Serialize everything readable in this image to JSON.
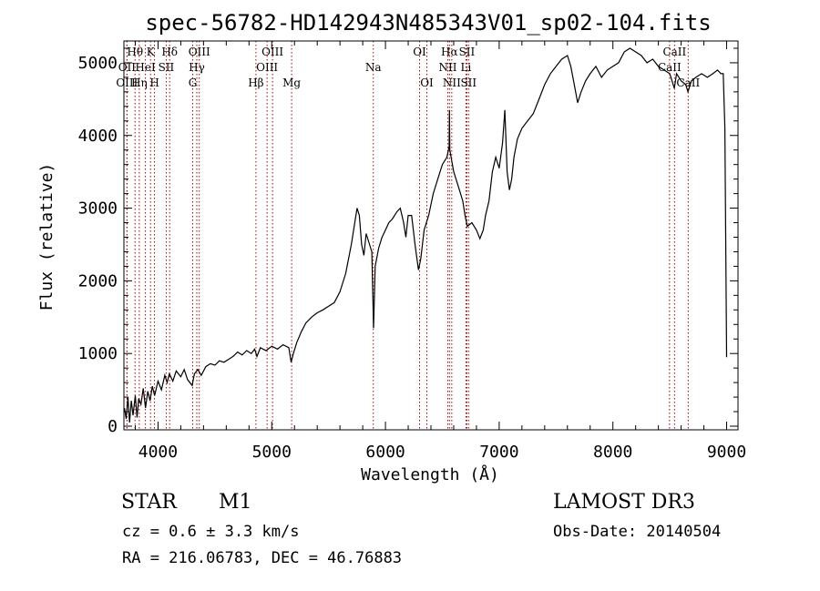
{
  "chart_data": {
    "type": "line",
    "title": "spec-56782-HD142943N485343V01_sp02-104.fits",
    "xlabel": "Wavelength (Å)",
    "ylabel": "Flux (relative)",
    "xlim": [
      3700,
      9100
    ],
    "ylim": [
      -50,
      5300
    ],
    "xticks": [
      4000,
      5000,
      6000,
      7000,
      8000,
      9000
    ],
    "yticks": [
      0,
      1000,
      2000,
      3000,
      4000,
      5000
    ],
    "series": [
      {
        "name": "flux",
        "points": [
          [
            3705,
            250
          ],
          [
            3720,
            100
          ],
          [
            3735,
            400
          ],
          [
            3750,
            50
          ],
          [
            3765,
            350
          ],
          [
            3780,
            150
          ],
          [
            3800,
            420
          ],
          [
            3815,
            120
          ],
          [
            3830,
            380
          ],
          [
            3850,
            300
          ],
          [
            3870,
            520
          ],
          [
            3890,
            250
          ],
          [
            3910,
            480
          ],
          [
            3930,
            350
          ],
          [
            3950,
            550
          ],
          [
            3970,
            420
          ],
          [
            4000,
            620
          ],
          [
            4030,
            500
          ],
          [
            4060,
            700
          ],
          [
            4080,
            600
          ],
          [
            4100,
            720
          ],
          [
            4130,
            620
          ],
          [
            4160,
            760
          ],
          [
            4200,
            680
          ],
          [
            4230,
            780
          ],
          [
            4260,
            640
          ],
          [
            4300,
            560
          ],
          [
            4320,
            720
          ],
          [
            4350,
            780
          ],
          [
            4380,
            700
          ],
          [
            4420,
            820
          ],
          [
            4460,
            860
          ],
          [
            4500,
            840
          ],
          [
            4540,
            900
          ],
          [
            4580,
            880
          ],
          [
            4620,
            920
          ],
          [
            4660,
            960
          ],
          [
            4700,
            1020
          ],
          [
            4740,
            980
          ],
          [
            4780,
            1040
          ],
          [
            4820,
            1000
          ],
          [
            4850,
            1060
          ],
          [
            4870,
            960
          ],
          [
            4900,
            1080
          ],
          [
            4950,
            1040
          ],
          [
            5000,
            1100
          ],
          [
            5050,
            1060
          ],
          [
            5100,
            1120
          ],
          [
            5150,
            1080
          ],
          [
            5170,
            880
          ],
          [
            5190,
            1000
          ],
          [
            5220,
            1150
          ],
          [
            5260,
            1300
          ],
          [
            5300,
            1420
          ],
          [
            5350,
            1500
          ],
          [
            5400,
            1560
          ],
          [
            5450,
            1600
          ],
          [
            5500,
            1650
          ],
          [
            5550,
            1700
          ],
          [
            5600,
            1850
          ],
          [
            5650,
            2100
          ],
          [
            5700,
            2500
          ],
          [
            5730,
            2800
          ],
          [
            5750,
            3000
          ],
          [
            5770,
            2900
          ],
          [
            5790,
            2500
          ],
          [
            5810,
            2350
          ],
          [
            5830,
            2650
          ],
          [
            5860,
            2500
          ],
          [
            5880,
            2400
          ],
          [
            5895,
            1350
          ],
          [
            5910,
            2200
          ],
          [
            5940,
            2450
          ],
          [
            5970,
            2600
          ],
          [
            6000,
            2700
          ],
          [
            6030,
            2800
          ],
          [
            6060,
            2850
          ],
          [
            6100,
            2950
          ],
          [
            6130,
            3000
          ],
          [
            6160,
            2800
          ],
          [
            6180,
            2600
          ],
          [
            6200,
            2900
          ],
          [
            6230,
            2900
          ],
          [
            6260,
            2500
          ],
          [
            6290,
            2150
          ],
          [
            6310,
            2300
          ],
          [
            6340,
            2700
          ],
          [
            6380,
            2900
          ],
          [
            6420,
            3200
          ],
          [
            6460,
            3400
          ],
          [
            6500,
            3600
          ],
          [
            6540,
            3700
          ],
          [
            6560,
            3850
          ],
          [
            6563,
            4350
          ],
          [
            6566,
            3800
          ],
          [
            6600,
            3500
          ],
          [
            6640,
            3300
          ],
          [
            6680,
            3100
          ],
          [
            6700,
            2900
          ],
          [
            6720,
            2750
          ],
          [
            6760,
            2800
          ],
          [
            6800,
            2700
          ],
          [
            6830,
            2580
          ],
          [
            6860,
            2700
          ],
          [
            6880,
            2900
          ],
          [
            6910,
            3100
          ],
          [
            6940,
            3500
          ],
          [
            6970,
            3700
          ],
          [
            7000,
            3550
          ],
          [
            7030,
            3900
          ],
          [
            7050,
            4350
          ],
          [
            7070,
            3500
          ],
          [
            7090,
            3250
          ],
          [
            7110,
            3400
          ],
          [
            7130,
            3700
          ],
          [
            7160,
            3950
          ],
          [
            7200,
            4100
          ],
          [
            7250,
            4200
          ],
          [
            7300,
            4300
          ],
          [
            7350,
            4500
          ],
          [
            7400,
            4700
          ],
          [
            7450,
            4850
          ],
          [
            7500,
            4950
          ],
          [
            7550,
            5050
          ],
          [
            7600,
            5100
          ],
          [
            7630,
            4950
          ],
          [
            7660,
            4700
          ],
          [
            7690,
            4450
          ],
          [
            7720,
            4600
          ],
          [
            7760,
            4750
          ],
          [
            7800,
            4850
          ],
          [
            7850,
            4950
          ],
          [
            7900,
            4800
          ],
          [
            7950,
            4900
          ],
          [
            8000,
            4950
          ],
          [
            8050,
            5000
          ],
          [
            8100,
            5150
          ],
          [
            8150,
            5200
          ],
          [
            8200,
            5150
          ],
          [
            8250,
            5100
          ],
          [
            8300,
            5000
          ],
          [
            8350,
            5050
          ],
          [
            8400,
            4950
          ],
          [
            8450,
            4900
          ],
          [
            8500,
            4850
          ],
          [
            8540,
            4650
          ],
          [
            8560,
            4850
          ],
          [
            8600,
            4750
          ],
          [
            8640,
            4700
          ],
          [
            8660,
            4600
          ],
          [
            8690,
            4750
          ],
          [
            8730,
            4800
          ],
          [
            8780,
            4850
          ],
          [
            8830,
            4800
          ],
          [
            8880,
            4850
          ],
          [
            8920,
            4900
          ],
          [
            8950,
            4850
          ],
          [
            8970,
            4850
          ],
          [
            8985,
            4100
          ],
          [
            9000,
            950
          ]
        ]
      }
    ],
    "lines": [
      {
        "name": "Hθ",
        "x": 3798,
        "row": 1
      },
      {
        "name": "OII",
        "x": 3727,
        "row": 2
      },
      {
        "name": "OIII",
        "x": 3727,
        "row": 3
      },
      {
        "name": "K",
        "x": 3934,
        "row": 1
      },
      {
        "name": "Hδ",
        "x": 4102,
        "row": 1
      },
      {
        "name": "HeI",
        "x": 3889,
        "row": 2
      },
      {
        "name": "SII",
        "x": 4072,
        "row": 2
      },
      {
        "name": "Hη",
        "x": 3835,
        "row": 3
      },
      {
        "name": "H",
        "x": 3969,
        "row": 3
      },
      {
        "name": "OIII",
        "x": 4363,
        "row": 1
      },
      {
        "name": "Hγ",
        "x": 4341,
        "row": 2
      },
      {
        "name": "G",
        "x": 4305,
        "row": 3
      },
      {
        "name": "OIII",
        "x": 5007,
        "row": 1
      },
      {
        "name": "OIII",
        "x": 4959,
        "row": 2
      },
      {
        "name": "Hβ",
        "x": 4861,
        "row": 3
      },
      {
        "name": "Mg",
        "x": 5175,
        "row": 3
      },
      {
        "name": "Na",
        "x": 5893,
        "row": 2
      },
      {
        "name": "OI",
        "x": 6300,
        "row": 1
      },
      {
        "name": "OI",
        "x": 6364,
        "row": 3
      },
      {
        "name": "Hα",
        "x": 6563,
        "row": 1
      },
      {
        "name": "SII",
        "x": 6716,
        "row": 1
      },
      {
        "name": "NII",
        "x": 6548,
        "row": 2
      },
      {
        "name": "Li",
        "x": 6708,
        "row": 2
      },
      {
        "name": "NII",
        "x": 6583,
        "row": 3
      },
      {
        "name": "SII",
        "x": 6731,
        "row": 3
      },
      {
        "name": "CaII",
        "x": 8542,
        "row": 1
      },
      {
        "name": "CaII",
        "x": 8498,
        "row": 2
      },
      {
        "name": "CaII",
        "x": 8662,
        "row": 3
      }
    ]
  },
  "info": {
    "object_class": "STAR",
    "subclass": "M1",
    "survey": "LAMOST DR3",
    "cz": "cz = 0.6 ± 3.3 km/s",
    "obs_date": "Obs-Date: 20140504",
    "coords": "RA = 216.06783, DEC =  46.76883"
  },
  "colors": {
    "line_marker": "#b00000",
    "spectrum": "#000000",
    "axis": "#000000"
  }
}
